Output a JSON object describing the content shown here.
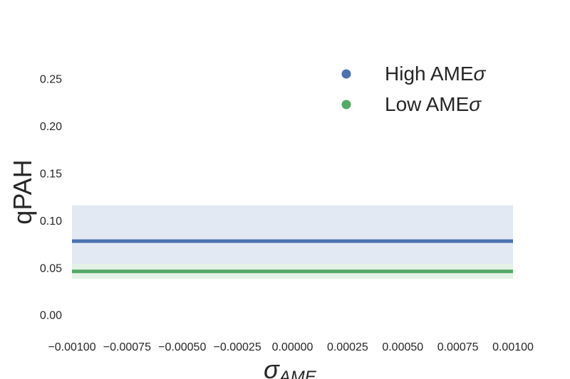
{
  "chart_data": {
    "type": "line",
    "xlabel": "σ_AME",
    "ylabel": "qPAH",
    "xlim": [
      -0.001,
      0.001
    ],
    "ylim": [
      -0.013,
      0.288
    ],
    "grid": false,
    "legend": "top-right",
    "x_ticks": [
      "−0.00100",
      "−0.00075",
      "−0.00050",
      "−0.00025",
      "0.00000",
      "0.00025",
      "0.00050",
      "0.00075",
      "0.00100"
    ],
    "y_ticks": [
      "0.00",
      "0.05",
      "0.10",
      "0.15",
      "0.20",
      "0.25"
    ],
    "series": [
      {
        "name": "High AMEσ",
        "color": "#4c72b0",
        "band_color": "#e3e9f3",
        "x": [
          -0.001,
          0.001
        ],
        "y": [
          0.078,
          0.078
        ],
        "band": [
          0.039,
          0.116
        ]
      },
      {
        "name": "Low AMEσ",
        "color": "#55a868",
        "band_color": "#e4f1e6",
        "x": [
          -0.001,
          0.001
        ],
        "y": [
          0.046,
          0.046
        ],
        "band": [
          0.038,
          0.054
        ]
      }
    ]
  }
}
